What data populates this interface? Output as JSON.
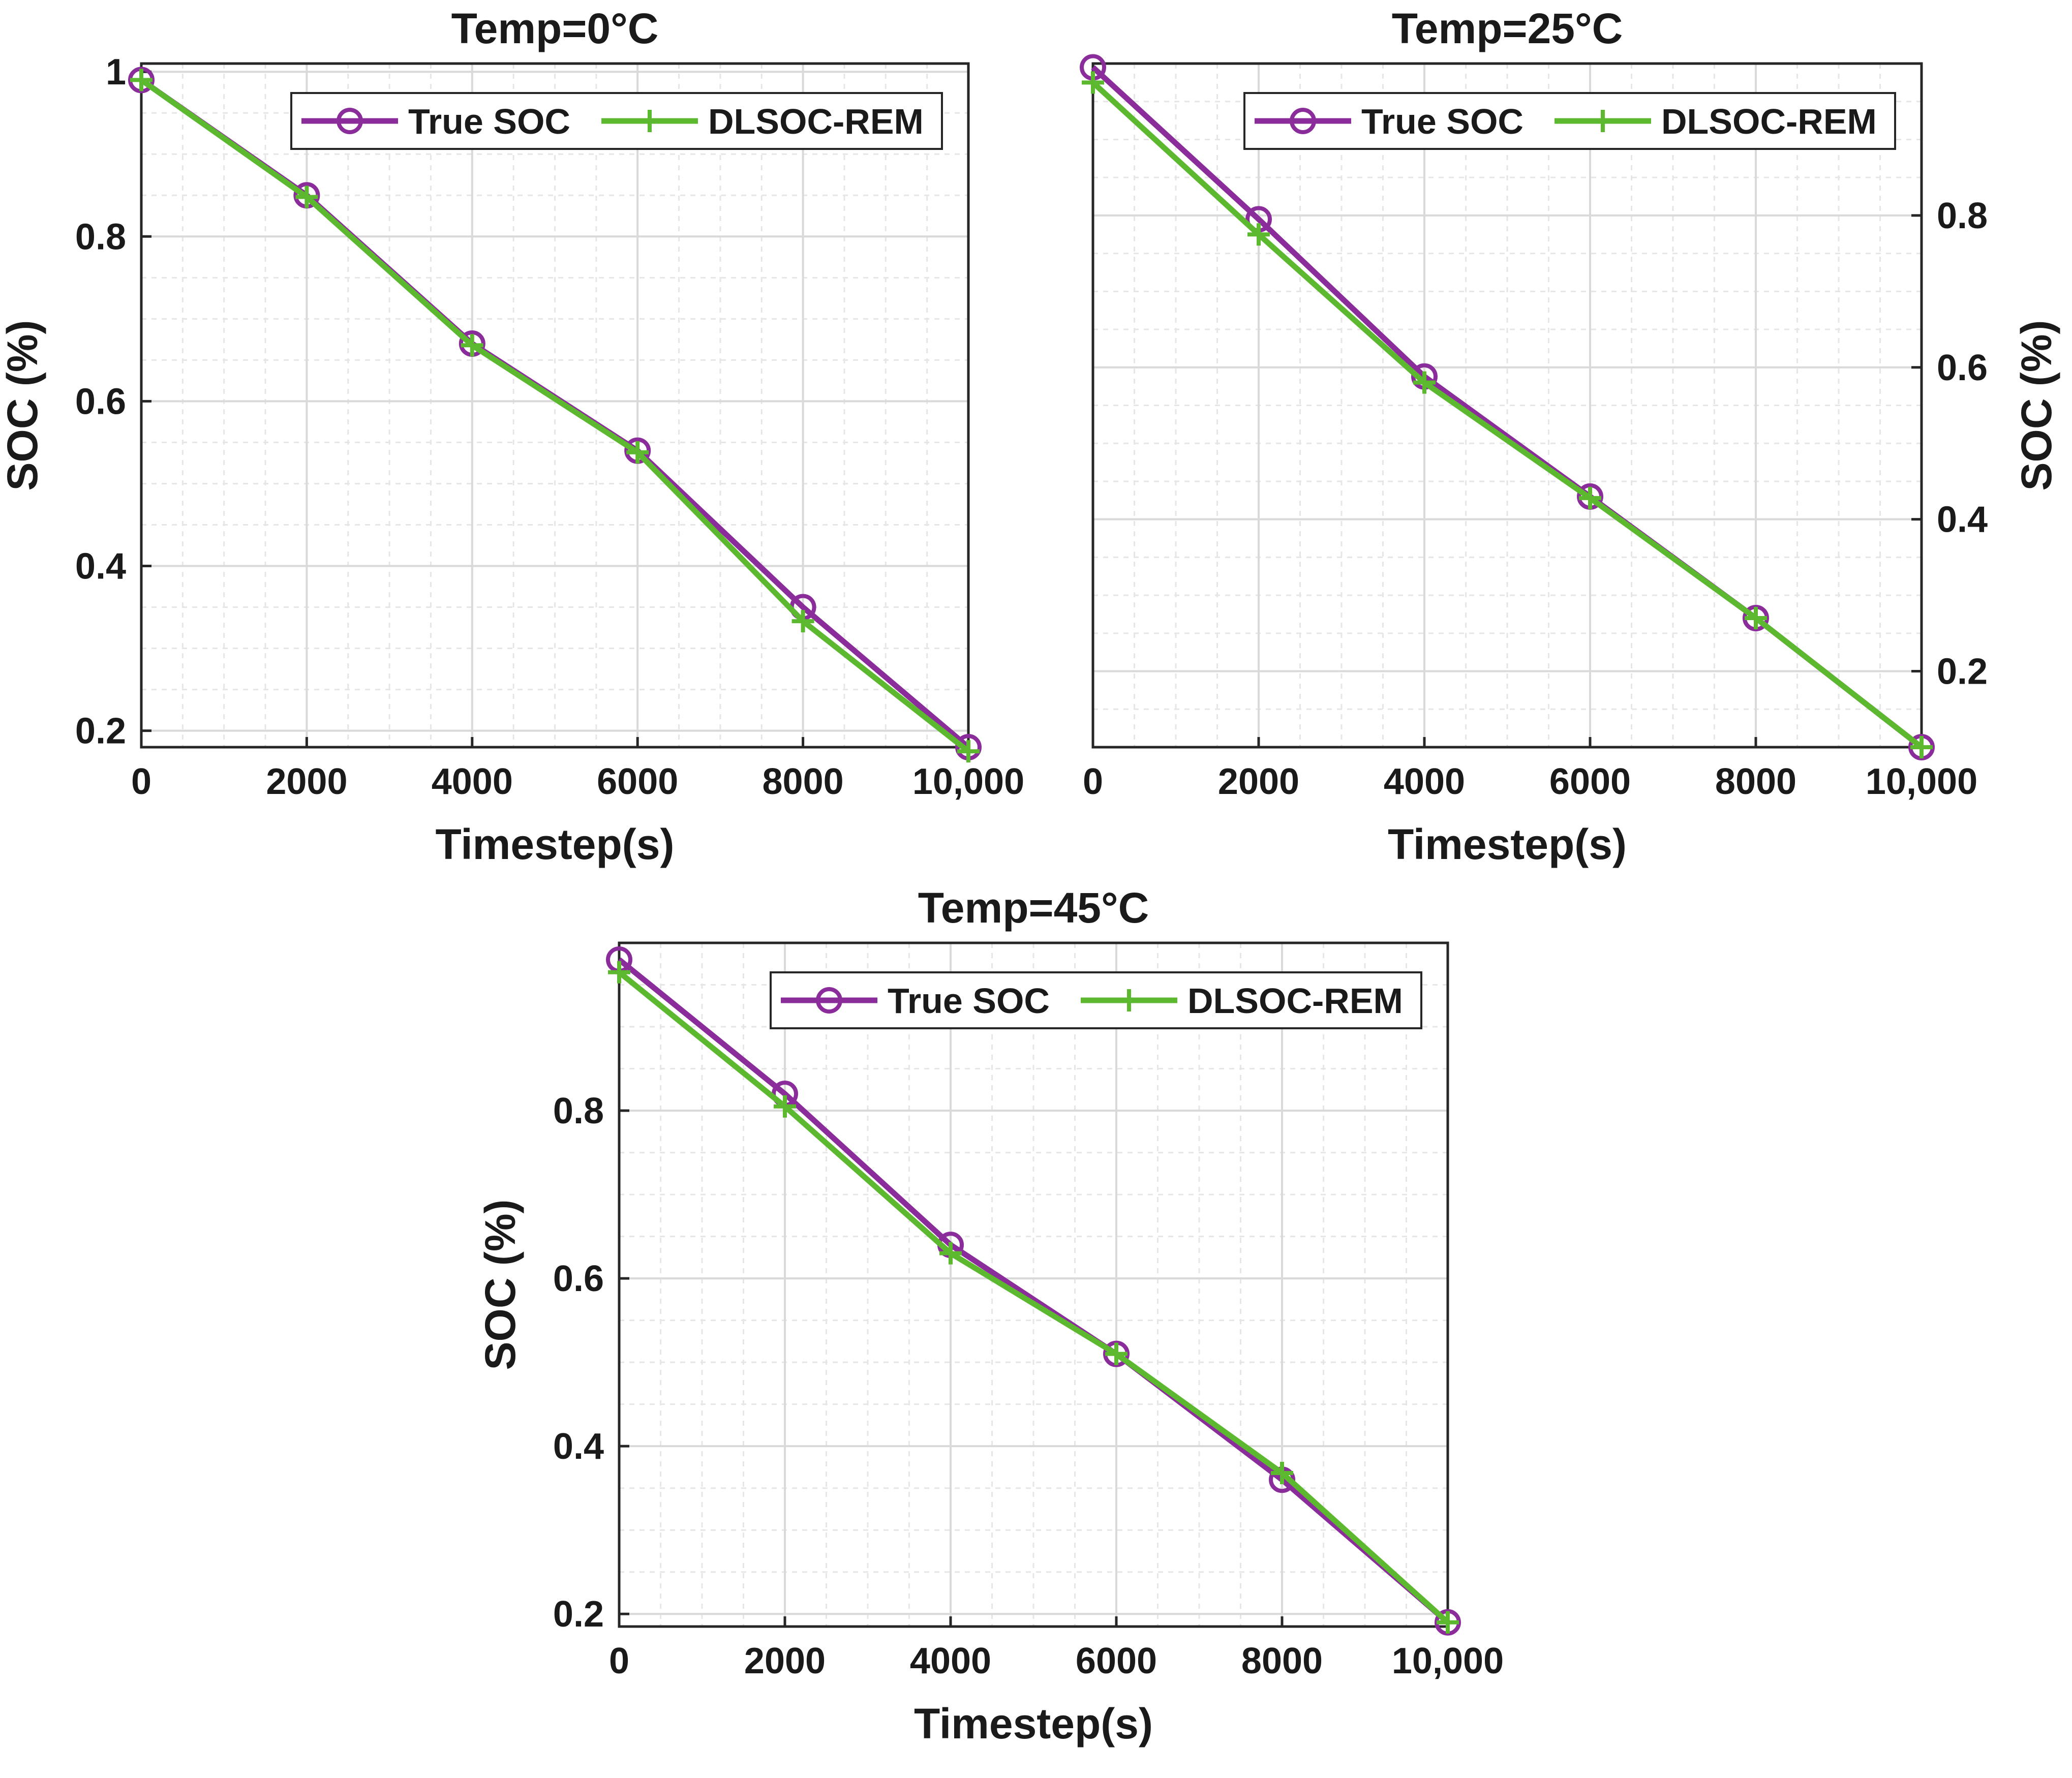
{
  "colors": {
    "true_soc": "#8B2C9B",
    "dlsoc": "#5CB82E",
    "grid": "#d9d9d9",
    "axis": "#262626"
  },
  "chart_data": [
    {
      "type": "line",
      "title": "Temp=0°C",
      "xlabel": "Timestep(s)",
      "ylabel": "SOC (%)",
      "xlim": [
        0,
        10000
      ],
      "ylim": [
        0.18,
        1.01
      ],
      "y_axis_side": "left",
      "x_ticks": [
        0,
        2000,
        4000,
        6000,
        8000,
        10000
      ],
      "x_tick_labels": [
        "0",
        "2000",
        "4000",
        "6000",
        "8000",
        "10,000"
      ],
      "y_ticks": [
        0.2,
        0.4,
        0.6,
        0.8,
        1.0
      ],
      "y_tick_labels": [
        "0.2",
        "0.4",
        "0.6",
        "0.8",
        "1"
      ],
      "grid": true,
      "legend_position": "top-right",
      "x": [
        0,
        2000,
        4000,
        6000,
        8000,
        10000
      ],
      "series": [
        {
          "name": "True SOC",
          "marker": "circle",
          "values": [
            0.99,
            0.85,
            0.67,
            0.54,
            0.35,
            0.18
          ]
        },
        {
          "name": "DLSOC-REM",
          "marker": "plus",
          "values": [
            0.99,
            0.848,
            0.668,
            0.538,
            0.333,
            0.175
          ]
        }
      ]
    },
    {
      "type": "line",
      "title": "Temp=25°C",
      "xlabel": "Timestep(s)",
      "ylabel": "SOC (%)",
      "xlim": [
        0,
        10000
      ],
      "ylim": [
        0.1,
        1.0
      ],
      "y_axis_side": "right",
      "x_ticks": [
        0,
        2000,
        4000,
        6000,
        8000,
        10000
      ],
      "x_tick_labels": [
        "0",
        "2000",
        "4000",
        "6000",
        "8000",
        "10,000"
      ],
      "y_ticks": [
        0.2,
        0.4,
        0.6,
        0.8
      ],
      "y_tick_labels": [
        "0.2",
        "0.4",
        "0.6",
        "0.8"
      ],
      "grid": true,
      "legend_position": "top-right",
      "x": [
        0,
        2000,
        4000,
        6000,
        8000,
        10000
      ],
      "series": [
        {
          "name": "True SOC",
          "marker": "circle",
          "values": [
            0.995,
            0.795,
            0.588,
            0.43,
            0.27,
            0.1
          ]
        },
        {
          "name": "DLSOC-REM",
          "marker": "plus",
          "values": [
            0.975,
            0.775,
            0.58,
            0.428,
            0.27,
            0.1
          ]
        }
      ]
    },
    {
      "type": "line",
      "title": "Temp=45°C",
      "xlabel": "Timestep(s)",
      "ylabel": "SOC (%)",
      "xlim": [
        0,
        10000
      ],
      "ylim": [
        0.185,
        1.0
      ],
      "y_axis_side": "left",
      "x_ticks": [
        0,
        2000,
        4000,
        6000,
        8000,
        10000
      ],
      "x_tick_labels": [
        "0",
        "2000",
        "4000",
        "6000",
        "8000",
        "10,000"
      ],
      "y_ticks": [
        0.2,
        0.4,
        0.6,
        0.8
      ],
      "y_tick_labels": [
        "0.2",
        "0.4",
        "0.6",
        "0.8"
      ],
      "grid": true,
      "legend_position": "top-right",
      "x": [
        0,
        2000,
        4000,
        6000,
        8000,
        10000
      ],
      "series": [
        {
          "name": "True SOC",
          "marker": "circle",
          "values": [
            0.98,
            0.82,
            0.64,
            0.51,
            0.36,
            0.19
          ]
        },
        {
          "name": "DLSOC-REM",
          "marker": "plus",
          "values": [
            0.965,
            0.805,
            0.63,
            0.51,
            0.368,
            0.19
          ]
        }
      ]
    }
  ]
}
